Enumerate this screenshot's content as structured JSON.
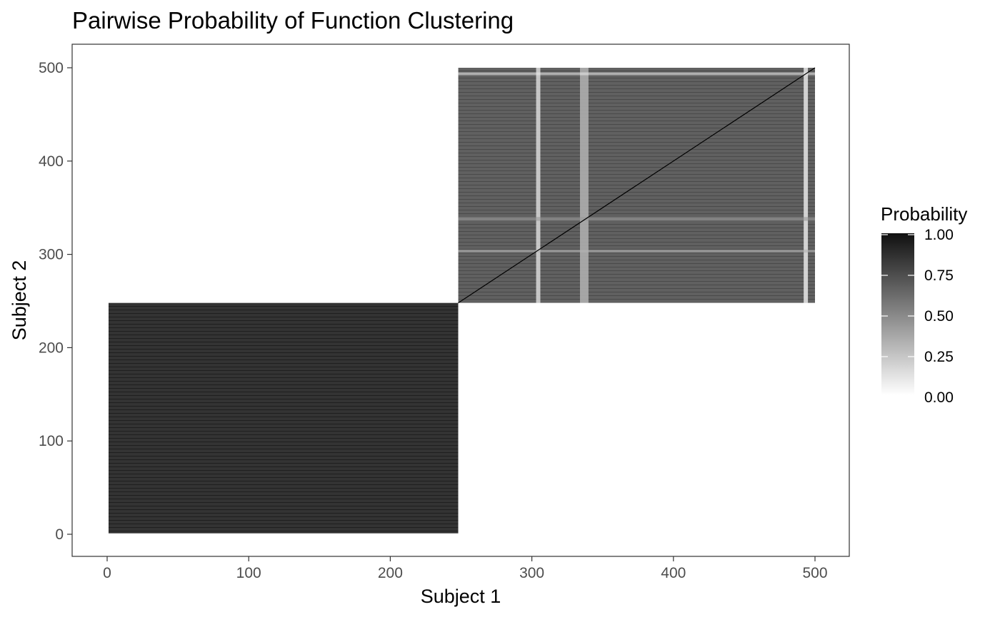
{
  "chart_data": {
    "type": "heatmap",
    "title": "Pairwise Probability of Function Clustering",
    "xlabel": "Subject 1",
    "ylabel": "Subject 2",
    "xlim": [
      1,
      500
    ],
    "ylim": [
      1,
      500
    ],
    "x_ticks": [
      0,
      100,
      200,
      300,
      400,
      500
    ],
    "y_ticks": [
      0,
      100,
      200,
      300,
      400,
      500
    ],
    "x_tick_labels": [
      "0",
      "100",
      "200",
      "300",
      "400",
      "500"
    ],
    "y_tick_labels": [
      "0",
      "100",
      "200",
      "300",
      "400",
      "500"
    ],
    "grid": false,
    "color_scale": {
      "low": "#ffffff",
      "high": "#000000",
      "range": [
        0,
        1
      ]
    },
    "legend": {
      "title": "Probability",
      "position": "right",
      "breaks": [
        1.0,
        0.75,
        0.5,
        0.25,
        0.0
      ],
      "labels": [
        "1.00",
        "0.75",
        "0.50",
        "0.25",
        "0.00"
      ]
    },
    "blocks": [
      {
        "region": "subject1 1-248, subject2 1-248",
        "x": [
          1,
          248
        ],
        "y": [
          1,
          248
        ],
        "mean_probability": 0.83
      },
      {
        "region": "subject1 248-500, subject2 248-500",
        "x": [
          248,
          500
        ],
        "y": [
          248,
          500
        ],
        "mean_probability": 0.62
      },
      {
        "region": "subject1 1-248, subject2 248-500",
        "x": [
          1,
          248
        ],
        "y": [
          248,
          500
        ],
        "mean_probability": 0.0
      },
      {
        "region": "subject1 248-500, subject2 1-248",
        "x": [
          248,
          500
        ],
        "y": [
          1,
          248
        ],
        "mean_probability": 0.0
      }
    ],
    "diagonal_probability": 1.0,
    "light_bands_subject1": [
      {
        "x": [
          303,
          306
        ],
        "probability": 0.15
      },
      {
        "x": [
          334,
          340
        ],
        "probability": 0.3
      },
      {
        "x": [
          492,
          495
        ],
        "probability": 0.1
      }
    ],
    "light_bands_subject2": [
      {
        "y": [
          302,
          305
        ],
        "probability": 0.3
      },
      {
        "y": [
          336,
          340
        ],
        "probability": 0.4
      },
      {
        "y": [
          492,
          495
        ],
        "probability": 0.1
      }
    ]
  }
}
